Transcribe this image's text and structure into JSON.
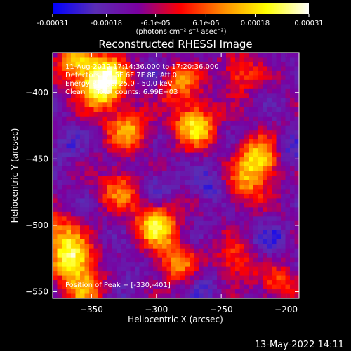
{
  "chart_data": {
    "type": "heatmap",
    "title": "Reconstructed RHESSI Image",
    "xlabel": "Heliocentric X (arcsec)",
    "ylabel": "Heliocentric Y (arcsec)",
    "xlim": [
      -380,
      -190
    ],
    "ylim": [
      -555,
      -370
    ],
    "x_ticks": [
      -350,
      -300,
      -250,
      -200
    ],
    "y_ticks": [
      -400,
      -450,
      -500,
      -550
    ],
    "colorbar": {
      "range": [
        -0.00031,
        0.00031
      ],
      "tick_values": [
        -0.00031,
        -0.00018,
        -6.1e-05,
        6.1e-05,
        0.00018,
        0.00031
      ],
      "tick_labels": [
        "-0.00031",
        "-0.00018",
        "-6.1e-05",
        "6.1e-05",
        "0.00018",
        "0.00031"
      ],
      "units_label": "(photons cm⁻² s⁻¹ asec⁻²)",
      "colormap": [
        "#0000ff",
        "#5a2db4",
        "#7a00a0",
        "#ff0000",
        "#ff8c00",
        "#ffff00",
        "#ffffff"
      ]
    },
    "annotations": {
      "time": "11-Aug-2012 17:14:36.000 to 17:20:36.000",
      "detectors": "Detectors: 3F 5F 6F 7F 8F, Att 0",
      "energy": "Energy Range: 25.0 - 50.0 keV",
      "method": "Clean     Total counts: 6.99E+03",
      "peak": "Position of Peak = [-330,-401]"
    },
    "bright_sources": [
      {
        "x": -343,
        "y": -398,
        "strength": 0.9
      },
      {
        "x": -362,
        "y": -378,
        "strength": 0.7
      },
      {
        "x": -336,
        "y": -384,
        "strength": 0.6
      },
      {
        "x": -322,
        "y": -428,
        "strength": 0.65
      },
      {
        "x": -270,
        "y": -425,
        "strength": 0.85
      },
      {
        "x": -283,
        "y": -392,
        "strength": 0.6
      },
      {
        "x": -236,
        "y": -386,
        "strength": 0.45
      },
      {
        "x": -220,
        "y": -450,
        "strength": 0.85
      },
      {
        "x": -232,
        "y": -470,
        "strength": 0.5
      },
      {
        "x": -300,
        "y": -500,
        "strength": 0.9
      },
      {
        "x": -328,
        "y": -473,
        "strength": 0.55
      },
      {
        "x": -285,
        "y": -528,
        "strength": 0.55
      },
      {
        "x": -365,
        "y": -525,
        "strength": 0.95
      },
      {
        "x": -376,
        "y": -505,
        "strength": 0.5
      },
      {
        "x": -355,
        "y": -548,
        "strength": 0.6
      },
      {
        "x": -240,
        "y": -527,
        "strength": 0.45
      },
      {
        "x": -205,
        "y": -545,
        "strength": 0.4
      }
    ],
    "dark_sources": [
      {
        "x": -258,
        "y": -470,
        "strength": 0.7
      },
      {
        "x": -300,
        "y": -470,
        "strength": 0.6
      },
      {
        "x": -198,
        "y": -445,
        "strength": 0.8
      },
      {
        "x": -212,
        "y": -512,
        "strength": 0.65
      },
      {
        "x": -262,
        "y": -545,
        "strength": 0.55
      },
      {
        "x": -325,
        "y": -535,
        "strength": 0.45
      },
      {
        "x": -370,
        "y": -440,
        "strength": 0.5
      },
      {
        "x": -298,
        "y": -383,
        "strength": 0.5
      }
    ]
  },
  "footer": {
    "timestamp": "13-May-2022 14:11"
  }
}
